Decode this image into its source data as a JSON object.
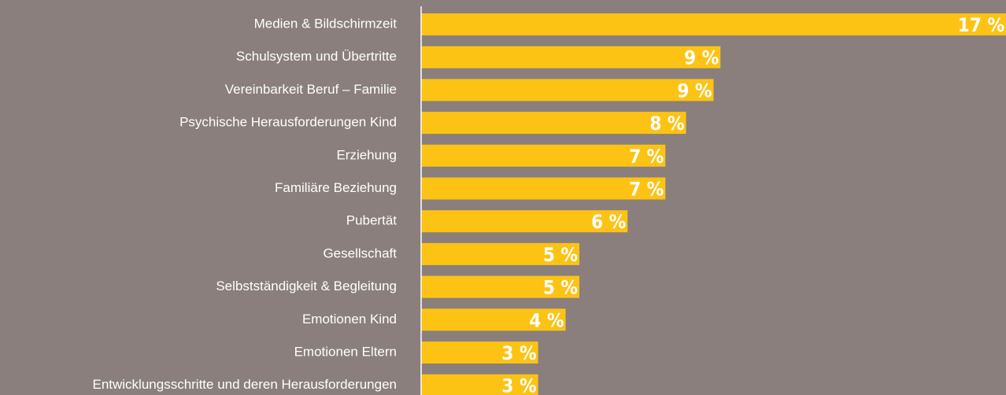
{
  "chart_data": {
    "type": "hbar",
    "categories": [
      "Medien & Bildschirmzeit",
      "Schulsystem und Übertritte",
      "Vereinbarkeit Beruf – Familie",
      "Psychische Herausforderungen Kind",
      "Erziehung",
      "Familiäre Beziehung",
      "Pubertät",
      "Gesellschaft",
      "Selbstständigkeit & Begleitung",
      "Emotionen Kind",
      "Emotionen Eltern",
      "Entwicklungsschritte und deren Herausforderungen"
    ],
    "values": [
      17.0,
      8.7,
      8.5,
      7.7,
      7.1,
      7.1,
      6.0,
      4.6,
      4.6,
      4.2,
      3.4,
      3.4
    ],
    "value_labels": [
      "17 %",
      "9 %",
      "9 %",
      "8 %",
      "7 %",
      "7 %",
      "6 %",
      "5 %",
      "5 %",
      "4 %",
      "3 %",
      "3 %"
    ],
    "color": "#fdc314",
    "xlim": [
      0,
      17
    ]
  }
}
